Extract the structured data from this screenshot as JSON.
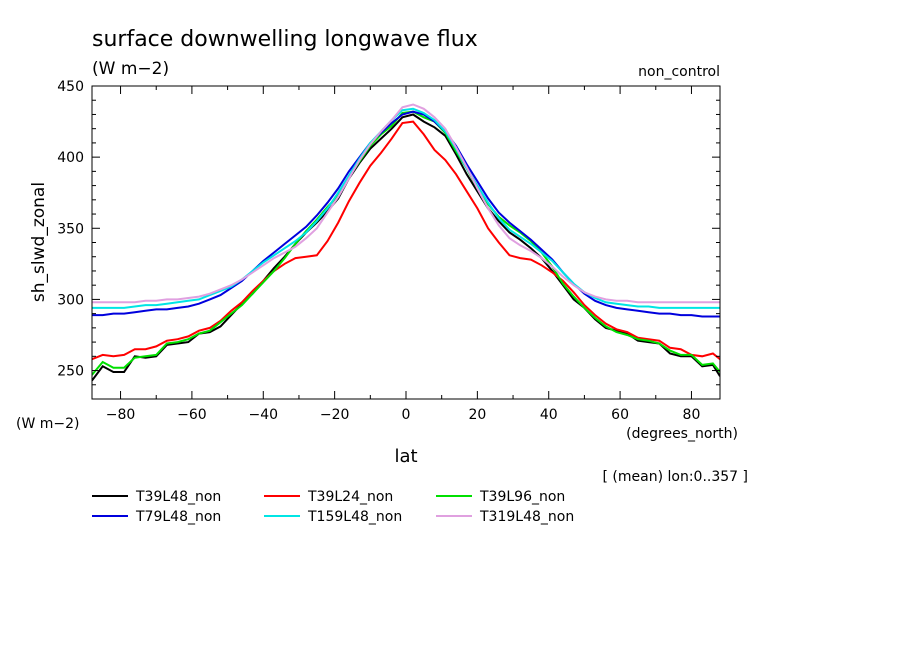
{
  "chart_data": {
    "type": "line",
    "title": "surface downwelling longwave flux",
    "subtitle": "(W m−2)",
    "experiment": "non_control",
    "ylabel": "sh_slwd_zonal",
    "y_units": "(W m−2)",
    "xlabel": "lat",
    "x_units": "(degrees_north)",
    "note": "[ (mean) lon:0..357 ]",
    "xlim": [
      -88,
      88
    ],
    "ylim": [
      230,
      450
    ],
    "x_ticks": [
      -80,
      -60,
      -40,
      -20,
      0,
      20,
      40,
      60,
      80
    ],
    "x_tick_labels": [
      "−80",
      "−60",
      "−40",
      "−20",
      "0",
      "20",
      "40",
      "60",
      "80"
    ],
    "y_ticks": [
      250,
      300,
      350,
      400,
      450
    ],
    "y_tick_labels": [
      "250",
      "300",
      "350",
      "400",
      "450"
    ],
    "legend_position": "bottom",
    "grid": false,
    "x": [
      -88,
      -85,
      -82,
      -79,
      -76,
      -73,
      -70,
      -67,
      -64,
      -61,
      -58,
      -55,
      -52,
      -49,
      -46,
      -43,
      -40,
      -37,
      -34,
      -31,
      -28,
      -25,
      -22,
      -19,
      -16,
      -13,
      -10,
      -7,
      -4,
      -1,
      2,
      5,
      8,
      11,
      14,
      17,
      20,
      23,
      26,
      29,
      32,
      35,
      38,
      41,
      44,
      47,
      50,
      53,
      56,
      59,
      62,
      65,
      68,
      71,
      74,
      77,
      80,
      83,
      86,
      88
    ],
    "series": [
      {
        "name": "T39L48_non",
        "color": "#000000",
        "values": [
          243,
          253,
          249,
          249,
          260,
          259,
          260,
          268,
          269,
          270,
          276,
          277,
          281,
          289,
          297,
          304,
          313,
          322,
          330,
          339,
          347,
          354,
          362,
          371,
          385,
          396,
          406,
          413,
          420,
          428,
          430,
          425,
          421,
          415,
          402,
          388,
          376,
          364,
          355,
          347,
          342,
          336,
          329,
          320,
          310,
          300,
          294,
          286,
          280,
          278,
          276,
          271,
          270,
          269,
          262,
          260,
          260,
          253,
          254,
          246
        ]
      },
      {
        "name": "T39L24_non",
        "color": "#ff0000",
        "values": [
          258,
          261,
          260,
          261,
          265,
          265,
          267,
          271,
          272,
          274,
          278,
          280,
          285,
          292,
          298,
          306,
          313,
          320,
          325,
          329,
          330,
          331,
          341,
          354,
          369,
          382,
          394,
          403,
          413,
          424,
          425,
          416,
          405,
          398,
          388,
          376,
          364,
          350,
          340,
          331,
          329,
          328,
          324,
          319,
          313,
          305,
          296,
          289,
          283,
          279,
          277,
          273,
          272,
          271,
          266,
          265,
          261,
          260,
          262,
          258
        ]
      },
      {
        "name": "T39L96_non",
        "color": "#00e000",
        "values": [
          247,
          256,
          252,
          252,
          259,
          260,
          261,
          269,
          270,
          272,
          276,
          278,
          284,
          290,
          296,
          304,
          312,
          320,
          329,
          339,
          348,
          356,
          365,
          373,
          386,
          397,
          408,
          416,
          422,
          431,
          432,
          428,
          425,
          417,
          404,
          392,
          378,
          367,
          358,
          352,
          347,
          341,
          333,
          323,
          311,
          302,
          294,
          287,
          281,
          277,
          275,
          272,
          271,
          269,
          264,
          261,
          261,
          254,
          255,
          249
        ]
      },
      {
        "name": "T79L48_non",
        "color": "#0000dd",
        "values": [
          289,
          289,
          290,
          290,
          291,
          292,
          293,
          293,
          294,
          295,
          297,
          300,
          303,
          308,
          313,
          320,
          327,
          333,
          339,
          345,
          351,
          359,
          368,
          378,
          390,
          400,
          410,
          417,
          424,
          430,
          432,
          430,
          425,
          418,
          408,
          395,
          383,
          371,
          361,
          354,
          348,
          342,
          335,
          328,
          319,
          311,
          304,
          299,
          296,
          294,
          293,
          292,
          291,
          290,
          290,
          289,
          289,
          288,
          288,
          288
        ]
      },
      {
        "name": "T159L48_non",
        "color": "#00e5e5",
        "values": [
          294,
          294,
          294,
          294,
          295,
          296,
          296,
          297,
          298,
          299,
          300,
          303,
          306,
          309,
          314,
          320,
          326,
          331,
          336,
          341,
          347,
          355,
          364,
          375,
          387,
          399,
          410,
          418,
          426,
          433,
          434,
          431,
          426,
          418,
          406,
          392,
          380,
          368,
          357,
          349,
          344,
          339,
          333,
          327,
          319,
          311,
          305,
          301,
          298,
          297,
          296,
          295,
          295,
          294,
          294,
          294,
          294,
          294,
          294,
          294
        ]
      },
      {
        "name": "T319L48_non",
        "color": "#e0a0e0",
        "values": [
          298,
          298,
          298,
          298,
          298,
          299,
          299,
          300,
          300,
          301,
          302,
          304,
          307,
          310,
          314,
          319,
          324,
          329,
          333,
          337,
          343,
          350,
          361,
          372,
          385,
          398,
          409,
          418,
          426,
          435,
          437,
          434,
          428,
          420,
          407,
          393,
          378,
          364,
          352,
          343,
          338,
          334,
          329,
          323,
          316,
          310,
          305,
          302,
          300,
          299,
          299,
          298,
          298,
          298,
          298,
          298,
          298,
          298,
          298,
          298
        ]
      }
    ]
  }
}
